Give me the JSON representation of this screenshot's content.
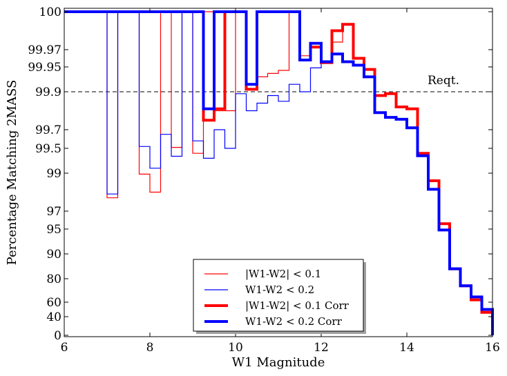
{
  "chart_data": {
    "type": "line",
    "title": "",
    "xlabel": "W1 Magnitude",
    "ylabel": "Percentage Matching 2MASS",
    "xlim": [
      6,
      16
    ],
    "x_ticks": [
      "6",
      "8",
      "10",
      "12",
      "14",
      "16"
    ],
    "y_scale": "nonlinear (magnified toward 100%)",
    "y_ticks": [
      "0",
      "40",
      "60",
      "80",
      "90",
      "95",
      "97",
      "99",
      "99.5",
      "99.7",
      "99.9",
      "99.95",
      "99.97",
      "100"
    ],
    "reference_line": {
      "label": "Reqt.",
      "value": 99.9,
      "style": "dashed"
    },
    "legend_position": "lower-center",
    "bin_edges": [
      6.0,
      6.25,
      6.5,
      6.75,
      7.0,
      7.25,
      7.5,
      7.75,
      8.0,
      8.25,
      8.5,
      8.75,
      9.0,
      9.25,
      9.5,
      9.75,
      10.0,
      10.25,
      10.5,
      10.75,
      11.0,
      11.25,
      11.5,
      11.75,
      12.0,
      12.25,
      12.5,
      12.75,
      13.0,
      13.25,
      13.5,
      13.75,
      14.0,
      14.25,
      14.5,
      14.75,
      15.0,
      15.25,
      15.5,
      15.75,
      16.0
    ],
    "series": [
      {
        "name": "|W1-W2| < 0.1",
        "color": "#ff0000",
        "width": "thin",
        "values": [
          100,
          100,
          100,
          100,
          97.7,
          100,
          100,
          98.95,
          98.0,
          100,
          99.51,
          100,
          99.4,
          100,
          99.8,
          99.8,
          100,
          99.905,
          99.93,
          99.937,
          99.943,
          100,
          99.963,
          99.972,
          99.956,
          99.976,
          99.99,
          99.96,
          99.945,
          99.88,
          99.89,
          99.82,
          99.81,
          99.4,
          98.6,
          95.6,
          84.0,
          74.0,
          62.0,
          46.0
        ]
      },
      {
        "name": "W1-W2  < 0.2",
        "color": "#0000ff",
        "width": "thin",
        "values": [
          100,
          100,
          100,
          100,
          97.9,
          100,
          100,
          99.52,
          99.1,
          99.65,
          99.34,
          100,
          99.58,
          99.3,
          99.7,
          99.5,
          99.89,
          99.8,
          99.84,
          99.88,
          99.85,
          99.915,
          99.9,
          99.948,
          99.956,
          99.965,
          99.956,
          99.952,
          99.93,
          99.79,
          99.765,
          99.755,
          99.71,
          99.35,
          98.15,
          94.8,
          84.0,
          74.0,
          64.5,
          50.0
        ]
      },
      {
        "name": "|W1-W2| < 0.1 Corr",
        "color": "#ff0000",
        "width": "thick",
        "values": [
          100,
          100,
          100,
          100,
          100,
          100,
          100,
          100,
          100,
          100,
          100,
          100,
          100,
          99.75,
          99.81,
          100,
          100,
          99.905,
          100,
          100,
          100,
          100,
          99.958,
          99.972,
          99.955,
          99.985,
          99.99,
          99.96,
          99.945,
          99.88,
          99.89,
          99.82,
          99.81,
          99.4,
          98.6,
          95.6,
          84.0,
          74.0,
          62.0,
          46.0
        ]
      },
      {
        "name": "W1-W2  < 0.2 Corr",
        "color": "#0000ff",
        "width": "thick",
        "values": [
          100,
          100,
          100,
          100,
          100,
          100,
          100,
          100,
          100,
          100,
          100,
          100,
          100,
          99.81,
          100,
          100,
          100,
          99.915,
          100,
          100,
          100,
          100,
          99.958,
          99.975,
          99.956,
          99.965,
          99.956,
          99.952,
          99.93,
          99.79,
          99.765,
          99.755,
          99.71,
          99.35,
          98.15,
          94.8,
          84.0,
          74.0,
          64.5,
          50.0
        ]
      }
    ]
  }
}
